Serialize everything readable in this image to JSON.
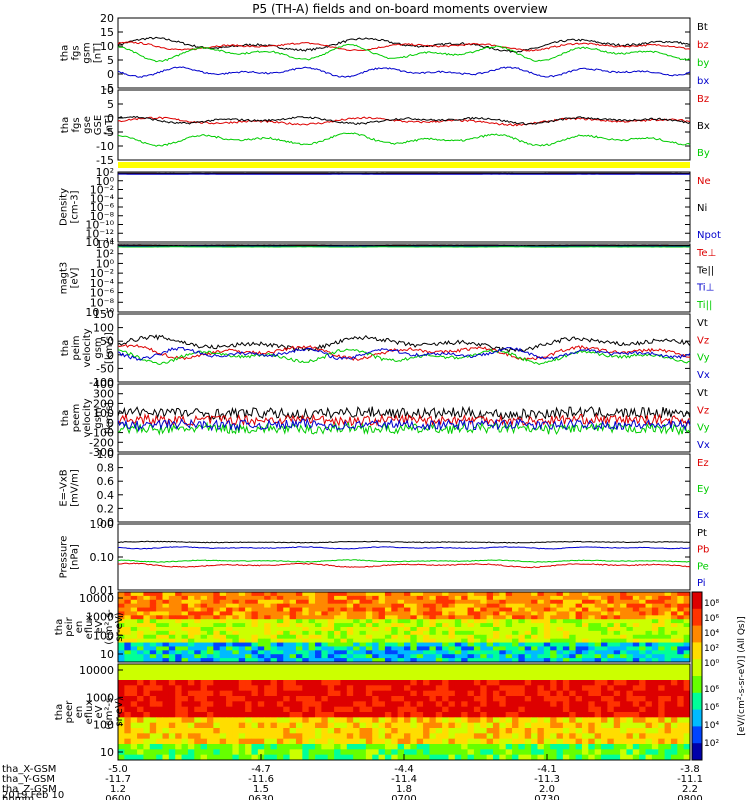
{
  "title": "P5 (TH-A) fields and on-board moments overview",
  "chart_data": {
    "type": "line",
    "x_ticks": [
      "0600",
      "0630",
      "0700",
      "0730",
      "0800"
    ],
    "orbit_rows": [
      {
        "label": "tha_X-GSM",
        "values": [
          "-5.0",
          "-4.7",
          "-4.4",
          "-4.1",
          "-3.8"
        ]
      },
      {
        "label": "tha_Y-GSM",
        "values": [
          "-11.7",
          "-11.6",
          "-11.4",
          "-11.3",
          "-11.1"
        ]
      },
      {
        "label": "tha_Z-GSM",
        "values": [
          "1.2",
          "1.5",
          "1.8",
          "2.0",
          "2.2"
        ]
      },
      {
        "label": "hhmm",
        "values": [
          "0600",
          "0630",
          "0700",
          "0730",
          "0800"
        ]
      }
    ],
    "date_label": "2019 Feb 10",
    "panels": [
      {
        "id": "fgs-gsm",
        "ylabel": [
          "tha",
          "fgs",
          "gsm",
          "[nT]"
        ],
        "yticks": [
          "20",
          "15",
          "10",
          "5",
          "0",
          "-5"
        ],
        "ylim": [
          -5,
          21
        ],
        "series": [
          {
            "name": "Bt",
            "color": "#000000",
            "base": 11,
            "amp": 2.5,
            "noise": 0.4
          },
          {
            "name": "bz",
            "color": "#dd0000",
            "base": 10.5,
            "amp": 1.5,
            "noise": 0.3
          },
          {
            "name": "by",
            "color": "#00cc00",
            "base": 8,
            "amp": 3,
            "noise": 0.3
          },
          {
            "name": "bx",
            "color": "#0000cc",
            "base": 1,
            "amp": 1.8,
            "noise": 0.3
          }
        ]
      },
      {
        "id": "fgs-gse",
        "ylabel": [
          "tha",
          "fgs",
          "gse",
          "GSE",
          "[nT]"
        ],
        "yticks": [
          "10",
          "5",
          "0",
          "-5",
          "-10",
          "-15"
        ],
        "ylim": [
          -18,
          11
        ],
        "series": [
          {
            "name": "Bz",
            "color": "#dd0000",
            "base": -2,
            "amp": 1.5,
            "noise": 0.4
          },
          {
            "name": "Bx",
            "color": "#000000",
            "base": -1.5,
            "amp": 1.5,
            "noise": 0.4
          },
          {
            "name": "By",
            "color": "#00cc00",
            "base": -9.5,
            "amp": 2.5,
            "noise": 0.4
          }
        ]
      },
      {
        "id": "density",
        "ylabel": [
          "Density",
          "[cm-3]"
        ],
        "yticks": [
          "10²",
          "10⁰",
          "10⁻²",
          "10⁻⁴",
          "10⁻⁶",
          "10⁻⁸",
          "10⁻¹⁰",
          "10⁻¹²",
          "10⁻¹⁴"
        ],
        "ylim": [
          -14,
          2
        ],
        "series": [
          {
            "name": "Ne",
            "color": "#dd0000",
            "base": 1.6,
            "amp": 0.02,
            "noise": 0.01
          },
          {
            "name": "Ni",
            "color": "#000000",
            "base": 1.7,
            "amp": 0.02,
            "noise": 0.01
          },
          {
            "name": "Npot",
            "color": "#0000cc",
            "base": 1.5,
            "amp": 0.02,
            "noise": 0.01
          }
        ]
      },
      {
        "id": "temperature",
        "ylabel": [
          "magt3",
          "[eV]"
        ],
        "yticks": [
          "10⁴",
          "10²",
          "10⁰",
          "10⁻²",
          "10⁻⁴",
          "10⁻⁶",
          "10⁻⁸",
          "10⁻¹⁰"
        ],
        "ylim": [
          -10,
          4
        ],
        "series": [
          {
            "name": "Te⊥",
            "color": "#dd0000",
            "base": 3.6,
            "amp": 0.02,
            "noise": 0.01
          },
          {
            "name": "Te||",
            "color": "#000000",
            "base": 3.7,
            "amp": 0.02,
            "noise": 0.01
          },
          {
            "name": "Ti⊥",
            "color": "#0000cc",
            "base": 3.5,
            "amp": 0.02,
            "noise": 0.01
          },
          {
            "name": "Ti||",
            "color": "#00cc00",
            "base": 3.4,
            "amp": 0.02,
            "noise": 0.01
          }
        ]
      },
      {
        "id": "peim-velocity",
        "ylabel": [
          "tha",
          "peim",
          "velocity",
          "gsm",
          "[km/s]"
        ],
        "yticks": [
          "150",
          "100",
          "50",
          "0",
          "-50",
          "-100"
        ],
        "ylim": [
          -100,
          150
        ],
        "series": [
          {
            "name": "Vt",
            "color": "#000000",
            "base": 40,
            "amp": 25,
            "noise": 8
          },
          {
            "name": "Vz",
            "color": "#dd0000",
            "base": 10,
            "amp": 25,
            "noise": 6
          },
          {
            "name": "Vy",
            "color": "#00cc00",
            "base": -5,
            "amp": 25,
            "noise": 6
          },
          {
            "name": "Vx",
            "color": "#0000cc",
            "base": 5,
            "amp": 20,
            "noise": 6
          }
        ]
      },
      {
        "id": "peem-velocity",
        "ylabel": [
          "tha",
          "peem",
          "velocity",
          "gsm",
          "[km/s]"
        ],
        "yticks": [
          "400",
          "300",
          "200",
          "100",
          "0",
          "-100",
          "-200",
          "-300"
        ],
        "ylim": [
          -300,
          400
        ],
        "series": [
          {
            "name": "Vt",
            "color": "#000000",
            "base": 100,
            "amp": 15,
            "noise": 55
          },
          {
            "name": "Vz",
            "color": "#dd0000",
            "base": 30,
            "amp": 10,
            "noise": 50
          },
          {
            "name": "Vy",
            "color": "#00cc00",
            "base": -60,
            "amp": 10,
            "noise": 50
          },
          {
            "name": "Vx",
            "color": "#0000cc",
            "base": -20,
            "amp": 10,
            "noise": 50
          }
        ]
      },
      {
        "id": "efield",
        "ylabel": [
          "E=-VxB",
          "[mV/m]"
        ],
        "yticks": [
          "1.0",
          "0.8",
          "0.6",
          "0.4",
          "0.2",
          "0.0"
        ],
        "ylim": [
          0,
          1
        ],
        "legend_only": true,
        "series": [
          {
            "name": "Ez",
            "color": "#dd0000"
          },
          {
            "name": "Ey",
            "color": "#00cc00"
          },
          {
            "name": "Ex",
            "color": "#0000cc"
          }
        ]
      },
      {
        "id": "pressure",
        "ylabel": [
          "Pressure",
          "[nPa]"
        ],
        "yticks": [
          "1.00",
          "0.10",
          "0.01"
        ],
        "ylim": [
          -2,
          0
        ],
        "series": [
          {
            "name": "Pt",
            "color": "#000000",
            "base": -0.55,
            "amp": 0.02,
            "noise": 0.01
          },
          {
            "name": "Pb",
            "color": "#dd0000",
            "base": -1.25,
            "amp": 0.06,
            "noise": 0.015
          },
          {
            "name": "Pe",
            "color": "#00cc00",
            "base": -1.12,
            "amp": 0.03,
            "noise": 0.01
          },
          {
            "name": "Pi",
            "color": "#0000cc",
            "base": -0.72,
            "amp": 0.03,
            "noise": 0.01
          }
        ]
      }
    ],
    "spectrograms": [
      {
        "id": "peir",
        "ylabel": [
          "tha",
          "peir",
          "en",
          "eflux",
          "eV",
          "(cm²-s-",
          "sr-eV)"
        ],
        "yticks": [
          "10000",
          "1000",
          "100",
          "10"
        ]
      },
      {
        "id": "peer",
        "ylabel": [
          "tha",
          "peer",
          "en",
          "eflux",
          "eV",
          "(cm²-s-",
          "sr-eV)"
        ],
        "yticks": [
          "10000",
          "1000",
          "100",
          "10"
        ]
      }
    ],
    "colorbar_label": "[eV/(cm²-s-sr-eV)] (All Qs)]",
    "colorbar_ticks_top": [
      "10⁸",
      "10⁶",
      "10⁴",
      "10²",
      "10⁰"
    ],
    "colorbar_ticks_bottom": [
      "10⁶",
      "10⁶",
      "10⁴",
      "10²"
    ]
  }
}
